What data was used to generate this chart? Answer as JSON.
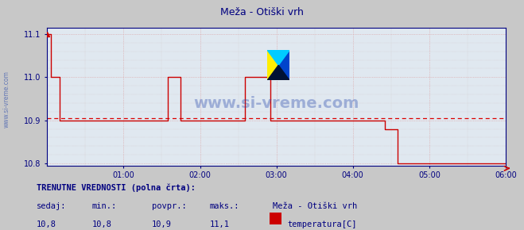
{
  "title": "Meža - Otiški vrh",
  "title_color": "#000080",
  "bg_color": "#c8c8c8",
  "plot_bg_color": "#e0e8f0",
  "grid_color_major": "#aaaacc",
  "grid_color_minor": "#ccccdd",
  "dashed_line_value": 10.905,
  "dashed_line_color": "#dd0000",
  "line_color": "#cc0000",
  "axis_color": "#000080",
  "x_label_color": "#000080",
  "y_label_color": "#000080",
  "ylim": [
    10.795,
    11.115
  ],
  "yticks": [
    10.8,
    10.9,
    11.0,
    11.1
  ],
  "xlim": [
    0,
    360
  ],
  "xticks": [
    60,
    120,
    180,
    240,
    300,
    360
  ],
  "xtick_labels": [
    "01:00",
    "02:00",
    "03:00",
    "04:00",
    "05:00",
    "06:00"
  ],
  "watermark": "www.si-vreme.com",
  "sidebar_text": "www.si-vreme.com",
  "footer_line1": "TRENUTNE VREDNOSTI (polna črta):",
  "footer_cols": [
    "sedaj:",
    "min.:",
    "povpr.:",
    "maks.:"
  ],
  "footer_values": [
    "10,8",
    "10,8",
    "10,9",
    "11,1"
  ],
  "footer_station": "Meža - Otiški vrh",
  "footer_sensor": "temperatura[C]",
  "footer_color": "#000080",
  "legend_rect_color": "#cc0000",
  "series": [
    [
      0,
      11.1
    ],
    [
      3,
      11.1
    ],
    [
      3,
      11.0
    ],
    [
      10,
      11.0
    ],
    [
      10,
      10.9
    ],
    [
      95,
      10.9
    ],
    [
      95,
      11.0
    ],
    [
      105,
      11.0
    ],
    [
      105,
      10.9
    ],
    [
      155,
      10.9
    ],
    [
      155,
      11.0
    ],
    [
      175,
      11.0
    ],
    [
      175,
      10.9
    ],
    [
      265,
      10.9
    ],
    [
      265,
      10.88
    ],
    [
      275,
      10.88
    ],
    [
      275,
      10.8
    ],
    [
      360,
      10.8
    ]
  ]
}
